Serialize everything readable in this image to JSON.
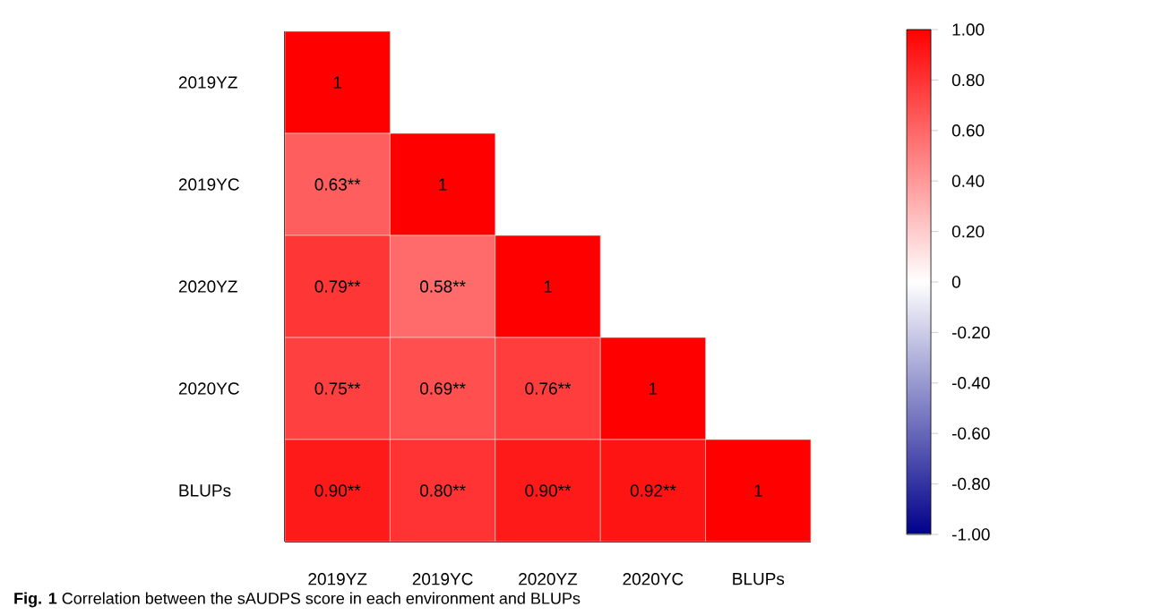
{
  "chart_data": {
    "type": "heatmap",
    "categories": [
      "2019YZ",
      "2019YC",
      "2020YZ",
      "2020YC",
      "BLUPs"
    ],
    "y_categories": [
      "2019YZ",
      "2019YC",
      "2020YZ",
      "2020YC",
      "BLUPs"
    ],
    "cells": [
      [
        1,
        null,
        null,
        null,
        null
      ],
      [
        0.63,
        1,
        null,
        null,
        null
      ],
      [
        0.79,
        0.58,
        1,
        null,
        null
      ],
      [
        0.75,
        0.69,
        0.76,
        1,
        null
      ],
      [
        0.9,
        0.8,
        0.9,
        0.92,
        1
      ]
    ],
    "cell_labels": [
      [
        "1",
        null,
        null,
        null,
        null
      ],
      [
        "0.63**",
        "1",
        null,
        null,
        null
      ],
      [
        "0.79**",
        "0.58**",
        "1",
        null,
        null
      ],
      [
        "0.75**",
        "0.69**",
        "0.76**",
        "1",
        null
      ],
      [
        "0.90**",
        "0.80**",
        "0.90**",
        "0.92**",
        "1"
      ]
    ],
    "clim": [
      -1,
      1
    ],
    "cticks": [
      {
        "value": -1,
        "label": "-1.00"
      },
      {
        "value": -0.8,
        "label": "-0.80"
      },
      {
        "value": -0.6,
        "label": "-0.60"
      },
      {
        "value": -0.4,
        "label": "-0.40"
      },
      {
        "value": -0.2,
        "label": "-0.20"
      },
      0,
      {
        "value": 0.2,
        "label": "0.20"
      },
      {
        "value": 0.4,
        "label": "0.40"
      },
      {
        "value": 0.6,
        "label": "0.60"
      },
      {
        "value": 0.8,
        "label": "0.80"
      },
      {
        "value": 1,
        "label": "1.00"
      }
    ],
    "annotations": [
      "**Fig. 1** Correlation between the sAUDPS score in each environment and BLUPs"
    ]
  }
}
